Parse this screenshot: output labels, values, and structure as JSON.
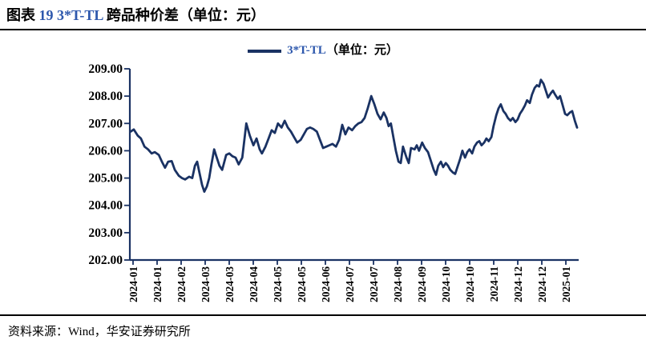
{
  "title": {
    "prefix": "图表 ",
    "code": "19 3*T-TL",
    "suffix": " 跨品种价差（单位：元）"
  },
  "footer": {
    "text": "资料来源：Wind，华安证券研究所"
  },
  "colors": {
    "line": "#1a3263",
    "axis": "#1a3263",
    "accent_blue": "#2e58ad",
    "text": "#000000",
    "background": "#ffffff"
  },
  "chart_data": {
    "type": "line",
    "title": "",
    "legend": {
      "code": "3*T-TL",
      "unit_suffix": "（单位：元）",
      "position": "top-center"
    },
    "grid": false,
    "ylim": [
      202,
      209
    ],
    "y_tick_labels": [
      "209.00",
      "208.00",
      "207.00",
      "206.00",
      "205.00",
      "204.00",
      "203.00",
      "202.00"
    ],
    "x_tick_labels": [
      "2024-01",
      "2024-01",
      "2024-02",
      "2024-03",
      "2024-03",
      "2024-04",
      "2024-05",
      "2024-05",
      "2024-06",
      "2024-07",
      "2024-07",
      "2024-08",
      "2024-09",
      "2024-10",
      "2024-10",
      "2024-11",
      "2024-12",
      "2024-12",
      "2025-01"
    ],
    "x_range": [
      "2024-01",
      "2025-01"
    ],
    "series": [
      {
        "name": "3*T-TL（单位：元）",
        "color": "#1a3263",
        "points": [
          [
            0.0,
            206.7
          ],
          [
            0.007,
            206.78
          ],
          [
            0.016,
            206.55
          ],
          [
            0.023,
            206.45
          ],
          [
            0.031,
            206.15
          ],
          [
            0.039,
            206.05
          ],
          [
            0.047,
            205.9
          ],
          [
            0.054,
            205.95
          ],
          [
            0.063,
            205.85
          ],
          [
            0.07,
            205.6
          ],
          [
            0.077,
            205.38
          ],
          [
            0.084,
            205.6
          ],
          [
            0.092,
            205.62
          ],
          [
            0.099,
            205.3
          ],
          [
            0.108,
            205.08
          ],
          [
            0.115,
            205.0
          ],
          [
            0.122,
            204.95
          ],
          [
            0.131,
            205.05
          ],
          [
            0.138,
            205.0
          ],
          [
            0.144,
            205.45
          ],
          [
            0.149,
            205.6
          ],
          [
            0.154,
            205.2
          ],
          [
            0.16,
            204.75
          ],
          [
            0.165,
            204.5
          ],
          [
            0.171,
            204.7
          ],
          [
            0.176,
            205.0
          ],
          [
            0.181,
            205.5
          ],
          [
            0.187,
            206.05
          ],
          [
            0.192,
            205.8
          ],
          [
            0.199,
            205.45
          ],
          [
            0.205,
            205.3
          ],
          [
            0.214,
            205.85
          ],
          [
            0.221,
            205.9
          ],
          [
            0.228,
            205.8
          ],
          [
            0.235,
            205.75
          ],
          [
            0.242,
            205.5
          ],
          [
            0.25,
            205.75
          ],
          [
            0.259,
            207.0
          ],
          [
            0.267,
            206.55
          ],
          [
            0.275,
            206.2
          ],
          [
            0.282,
            206.45
          ],
          [
            0.289,
            206.05
          ],
          [
            0.294,
            205.9
          ],
          [
            0.302,
            206.15
          ],
          [
            0.309,
            206.45
          ],
          [
            0.316,
            206.75
          ],
          [
            0.323,
            206.65
          ],
          [
            0.33,
            207.0
          ],
          [
            0.338,
            206.85
          ],
          [
            0.345,
            207.1
          ],
          [
            0.352,
            206.85
          ],
          [
            0.359,
            206.7
          ],
          [
            0.366,
            206.5
          ],
          [
            0.373,
            206.3
          ],
          [
            0.381,
            206.4
          ],
          [
            0.388,
            206.6
          ],
          [
            0.395,
            206.8
          ],
          [
            0.402,
            206.85
          ],
          [
            0.409,
            206.8
          ],
          [
            0.417,
            206.7
          ],
          [
            0.424,
            206.4
          ],
          [
            0.431,
            206.1
          ],
          [
            0.438,
            206.15
          ],
          [
            0.445,
            206.2
          ],
          [
            0.452,
            206.25
          ],
          [
            0.46,
            206.15
          ],
          [
            0.467,
            206.4
          ],
          [
            0.474,
            206.95
          ],
          [
            0.481,
            206.6
          ],
          [
            0.488,
            206.85
          ],
          [
            0.496,
            206.75
          ],
          [
            0.503,
            206.9
          ],
          [
            0.51,
            207.0
          ],
          [
            0.517,
            207.05
          ],
          [
            0.524,
            207.2
          ],
          [
            0.531,
            207.55
          ],
          [
            0.539,
            208.0
          ],
          [
            0.546,
            207.7
          ],
          [
            0.553,
            207.35
          ],
          [
            0.56,
            207.15
          ],
          [
            0.567,
            207.4
          ],
          [
            0.573,
            207.2
          ],
          [
            0.578,
            206.9
          ],
          [
            0.583,
            207.0
          ],
          [
            0.589,
            206.45
          ],
          [
            0.594,
            206.0
          ],
          [
            0.6,
            205.6
          ],
          [
            0.605,
            205.55
          ],
          [
            0.61,
            206.15
          ],
          [
            0.618,
            205.75
          ],
          [
            0.623,
            205.55
          ],
          [
            0.628,
            206.1
          ],
          [
            0.636,
            206.05
          ],
          [
            0.641,
            206.2
          ],
          [
            0.646,
            206.0
          ],
          [
            0.653,
            206.3
          ],
          [
            0.659,
            206.1
          ],
          [
            0.666,
            205.95
          ],
          [
            0.673,
            205.6
          ],
          [
            0.679,
            205.3
          ],
          [
            0.684,
            205.12
          ],
          [
            0.689,
            205.45
          ],
          [
            0.695,
            205.6
          ],
          [
            0.7,
            205.4
          ],
          [
            0.706,
            205.55
          ],
          [
            0.711,
            205.45
          ],
          [
            0.716,
            205.3
          ],
          [
            0.722,
            205.2
          ],
          [
            0.727,
            205.15
          ],
          [
            0.732,
            205.4
          ],
          [
            0.738,
            205.7
          ],
          [
            0.743,
            206.0
          ],
          [
            0.749,
            205.75
          ],
          [
            0.754,
            205.95
          ],
          [
            0.759,
            206.05
          ],
          [
            0.765,
            205.9
          ],
          [
            0.77,
            206.15
          ],
          [
            0.776,
            206.3
          ],
          [
            0.781,
            206.35
          ],
          [
            0.786,
            206.2
          ],
          [
            0.792,
            206.3
          ],
          [
            0.797,
            206.45
          ],
          [
            0.802,
            206.35
          ],
          [
            0.808,
            206.5
          ],
          [
            0.813,
            206.9
          ],
          [
            0.819,
            207.3
          ],
          [
            0.824,
            207.55
          ],
          [
            0.829,
            207.7
          ],
          [
            0.835,
            207.45
          ],
          [
            0.84,
            207.35
          ],
          [
            0.845,
            207.2
          ],
          [
            0.851,
            207.1
          ],
          [
            0.856,
            207.2
          ],
          [
            0.862,
            207.05
          ],
          [
            0.867,
            207.15
          ],
          [
            0.872,
            207.35
          ],
          [
            0.878,
            207.5
          ],
          [
            0.883,
            207.65
          ],
          [
            0.888,
            207.85
          ],
          [
            0.894,
            207.75
          ],
          [
            0.899,
            208.05
          ],
          [
            0.905,
            208.3
          ],
          [
            0.91,
            208.4
          ],
          [
            0.915,
            208.35
          ],
          [
            0.919,
            208.6
          ],
          [
            0.925,
            208.45
          ],
          [
            0.93,
            208.2
          ],
          [
            0.935,
            207.95
          ],
          [
            0.941,
            208.1
          ],
          [
            0.946,
            208.2
          ],
          [
            0.951,
            208.05
          ],
          [
            0.957,
            207.9
          ],
          [
            0.962,
            208.0
          ],
          [
            0.968,
            207.65
          ],
          [
            0.973,
            207.35
          ],
          [
            0.978,
            207.3
          ],
          [
            0.984,
            207.4
          ],
          [
            0.989,
            207.45
          ],
          [
            0.995,
            207.1
          ],
          [
            1.0,
            206.85
          ]
        ]
      }
    ]
  }
}
